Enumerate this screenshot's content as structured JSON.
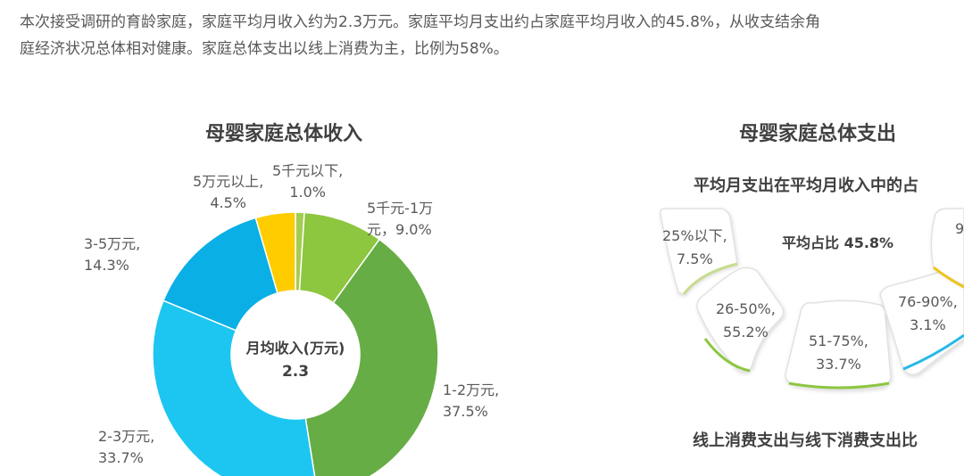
{
  "intro": {
    "line1": "本次接受调研的育龄家庭，家庭平均月收入约为2.3万元。家庭平均月支出约占家庭平均月收入的45.8%，从收支结余角",
    "line2": "庭经济状况总体相对健康。家庭总体支出以线上消费为主，比例为58%。"
  },
  "colors": {
    "lt5k": "#a5cc52",
    "r5k_1w": "#8dc63f",
    "r1_2w": "#66ad45",
    "r2_3w": "#1cc6f0",
    "r3_5w": "#0aafe5",
    "gt5w": "#ffcc00",
    "tile_border_a": "#c7dc8e",
    "tile_border_b": "#8cc63f",
    "tile_border_c": "#28b8e8",
    "tile_border_d": "#f0c419"
  },
  "chart_data": [
    {
      "type": "pie",
      "title": "母婴家庭总体收入",
      "center_label": "月均收入(万元)",
      "center_value": "2.3",
      "slices": [
        {
          "label": "5千元以下,",
          "value": 1.0,
          "text": "1.0%"
        },
        {
          "label": "5千元-1万元，",
          "value": 9.0,
          "text": "9.0%"
        },
        {
          "label": "1-2万元,",
          "value": 37.5,
          "text": "37.5%"
        },
        {
          "label": "2-3万元,",
          "value": 33.7,
          "text": "33.7%"
        },
        {
          "label": "3-5万元,",
          "value": 14.3,
          "text": "14.3%"
        },
        {
          "label": "5万元以上,",
          "value": 4.5,
          "text": "4.5%"
        }
      ]
    },
    {
      "type": "bar",
      "title": "母婴家庭总体支出",
      "subtitle": "平均月支出在平均月收入中的占",
      "average_label": "平均占比 45.8%",
      "categories": [
        "25%以下,",
        "26-50%,",
        "51-75%,",
        "76-90%,",
        "9"
      ],
      "values": [
        7.5,
        55.2,
        33.7,
        3.1,
        null
      ],
      "value_texts": [
        "7.5%",
        "55.2%",
        "33.7%",
        "3.1%",
        ""
      ]
    }
  ],
  "bottom_title": "线上消费支出与线下消费支出比"
}
